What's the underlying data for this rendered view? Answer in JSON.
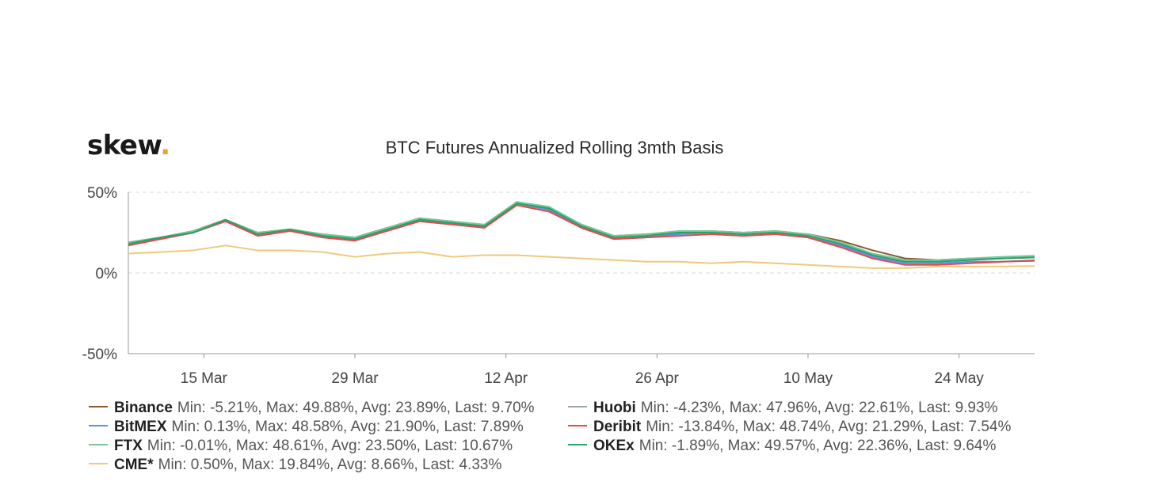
{
  "logo": {
    "text": "skew",
    "dot": "."
  },
  "chart_data": {
    "type": "line",
    "title": "BTC Futures Annualized Rolling 3mth Basis",
    "xlabel": "",
    "ylabel": "",
    "x_ticks": [
      "15 Mar",
      "29 Mar",
      "12 Apr",
      "26 Apr",
      "10 May",
      "24 May"
    ],
    "y_ticks": [
      "50%",
      "0%",
      "-50%"
    ],
    "ylim": [
      -50,
      50
    ],
    "x": [
      "2020-03-08",
      "2020-03-11",
      "2020-03-14",
      "2020-03-17",
      "2020-03-20",
      "2020-03-23",
      "2020-03-26",
      "2020-03-29",
      "2020-04-01",
      "2020-04-04",
      "2020-04-07",
      "2020-04-10",
      "2020-04-13",
      "2020-04-16",
      "2020-04-19",
      "2020-04-22",
      "2020-04-25",
      "2020-04-28",
      "2020-05-01",
      "2020-05-04",
      "2020-05-07",
      "2020-05-10",
      "2020-05-13",
      "2020-05-16",
      "2020-05-19",
      "2020-05-22",
      "2020-05-25",
      "2020-05-28",
      "2020-05-31"
    ],
    "series": [
      {
        "name": "Binance",
        "color": "#8b5a2b",
        "stats": "Min: -5.21%, Max: 49.88%, Avg: 23.89%, Last: 9.70%",
        "values": [
          19,
          22,
          26,
          33,
          25,
          27,
          24,
          22,
          28,
          33,
          32,
          29,
          44,
          40,
          30,
          23,
          24,
          25,
          26,
          25,
          26,
          24,
          20,
          14,
          9,
          8,
          9,
          9,
          9.7
        ]
      },
      {
        "name": "BitMEX",
        "color": "#5b8def",
        "stats": "Min: 0.13%, Max: 48.58%, Avg: 21.90%, Last: 7.89%",
        "values": [
          18,
          21,
          25,
          32,
          24,
          26,
          23,
          20,
          27,
          32,
          31,
          28,
          43,
          39,
          28,
          21,
          22,
          24,
          25,
          24,
          25,
          22,
          17,
          10,
          6,
          6,
          7,
          7,
          7.89
        ]
      },
      {
        "name": "FTX",
        "color": "#79c79a",
        "stats": "Min: -0.01%, Max: 48.61%, Avg: 23.50%, Last: 10.67%",
        "values": [
          19,
          22,
          26,
          33,
          25,
          27,
          24,
          22,
          28,
          34,
          32,
          30,
          44,
          41,
          30,
          23,
          24,
          26,
          26,
          25,
          26,
          24,
          19,
          12,
          8,
          8,
          9,
          10,
          10.67
        ]
      },
      {
        "name": "CME*",
        "color": "#f0c97a",
        "stats": "Min: 0.50%, Max: 19.84%, Avg: 8.66%, Last: 4.33%",
        "values": [
          12,
          13,
          14,
          17,
          14,
          14,
          13,
          10,
          12,
          13,
          10,
          11,
          11,
          10,
          9,
          8,
          7,
          7,
          6,
          7,
          6,
          5,
          4,
          3,
          3,
          4,
          4,
          4,
          4.33
        ]
      },
      {
        "name": "Huobi",
        "color": "#9aa6a0",
        "stats": "Min: -4.23%, Max: 47.96%, Avg: 22.61%, Last: 9.93%",
        "values": [
          18,
          22,
          25,
          33,
          24,
          27,
          23,
          21,
          28,
          33,
          32,
          29,
          43,
          40,
          29,
          22,
          23,
          25,
          25,
          24,
          25,
          23,
          18,
          11,
          7,
          8,
          8,
          9,
          9.93
        ]
      },
      {
        "name": "Deribit",
        "color": "#e8474a",
        "stats": "Min: -13.84%, Max: 48.74%, Avg: 21.29%, Last: 7.54%",
        "values": [
          17,
          21,
          25,
          32,
          23,
          26,
          22,
          20,
          26,
          32,
          30,
          28,
          42,
          38,
          28,
          21,
          22,
          23,
          24,
          23,
          24,
          22,
          16,
          9,
          5,
          5,
          6,
          7,
          7.54
        ]
      },
      {
        "name": "OKEx",
        "color": "#27a46c",
        "stats": "Min: -1.89%, Max: 49.57%, Avg: 22.36%, Last: 9.64%",
        "values": [
          18,
          22,
          25,
          33,
          24,
          27,
          23,
          21,
          27,
          33,
          31,
          29,
          43,
          40,
          29,
          22,
          23,
          25,
          25,
          24,
          25,
          23,
          18,
          11,
          7,
          7,
          8,
          9,
          9.64
        ]
      }
    ]
  }
}
